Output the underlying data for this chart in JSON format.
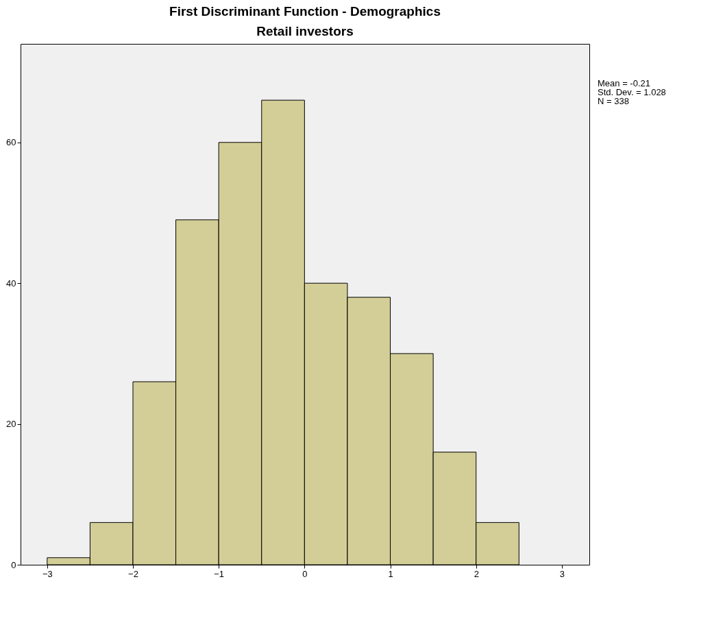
{
  "chart_data": {
    "type": "histogram",
    "title": "First Discriminant Function - Demographics",
    "subtitle": "Retail investors",
    "bins": [
      -3,
      -2.5,
      -2,
      -1.5,
      -1,
      -0.5,
      0,
      0.5,
      1,
      1.5,
      2,
      2.5
    ],
    "values": [
      1,
      6,
      26,
      49,
      60,
      66,
      40,
      38,
      30,
      16,
      6
    ],
    "color": "#d3ce97",
    "xlim": [
      -3.31,
      3.32
    ],
    "ylim": [
      0,
      74
    ],
    "xticks": [
      -3,
      -2,
      -1,
      0,
      1,
      2,
      3
    ],
    "yticks": [
      0,
      20,
      40,
      60
    ],
    "grid": false,
    "annotations": [
      "Mean = -0.21",
      "Std. Dev. = 1.028",
      "N = 338"
    ]
  }
}
